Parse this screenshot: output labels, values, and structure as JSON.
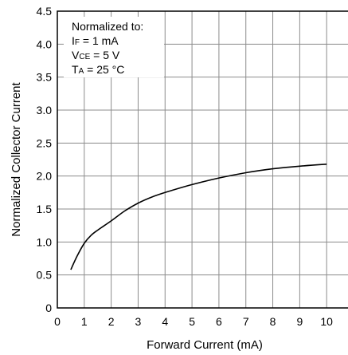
{
  "chart_data": {
    "type": "line",
    "title": "",
    "xlabel": "Forward Current (mA)",
    "ylabel": "Normalized Collector Current",
    "xlim": [
      0,
      11
    ],
    "ylim": [
      0,
      4.5
    ],
    "x_ticks": [
      "0",
      "1",
      "2",
      "3",
      "4",
      "5",
      "6",
      "7",
      "8",
      "9",
      "10"
    ],
    "y_ticks": [
      "0",
      "0.5",
      "1.0",
      "1.5",
      "2.0",
      "2.5",
      "3.0",
      "3.5",
      "4.0",
      "4.5"
    ],
    "grid": true,
    "series": [
      {
        "x": [
          0.5,
          0.75,
          1.0,
          1.25,
          1.5,
          2.0,
          2.5,
          3.0,
          3.5,
          4.0,
          5.0,
          6.0,
          7.0,
          8.0,
          9.0,
          10.0
        ],
        "y": [
          0.58,
          0.8,
          0.98,
          1.1,
          1.18,
          1.32,
          1.47,
          1.59,
          1.68,
          1.75,
          1.87,
          1.97,
          2.05,
          2.11,
          2.15,
          2.18
        ]
      }
    ],
    "annotation": {
      "title": "Normalized to:",
      "lines": [
        {
          "main": "I",
          "sub": "F",
          "rest": " = 1 mA"
        },
        {
          "main": "V",
          "sub": "CE",
          "rest": " = 5 V"
        },
        {
          "main": "T",
          "sub": "A",
          "rest": " = 25 °C"
        }
      ]
    }
  }
}
